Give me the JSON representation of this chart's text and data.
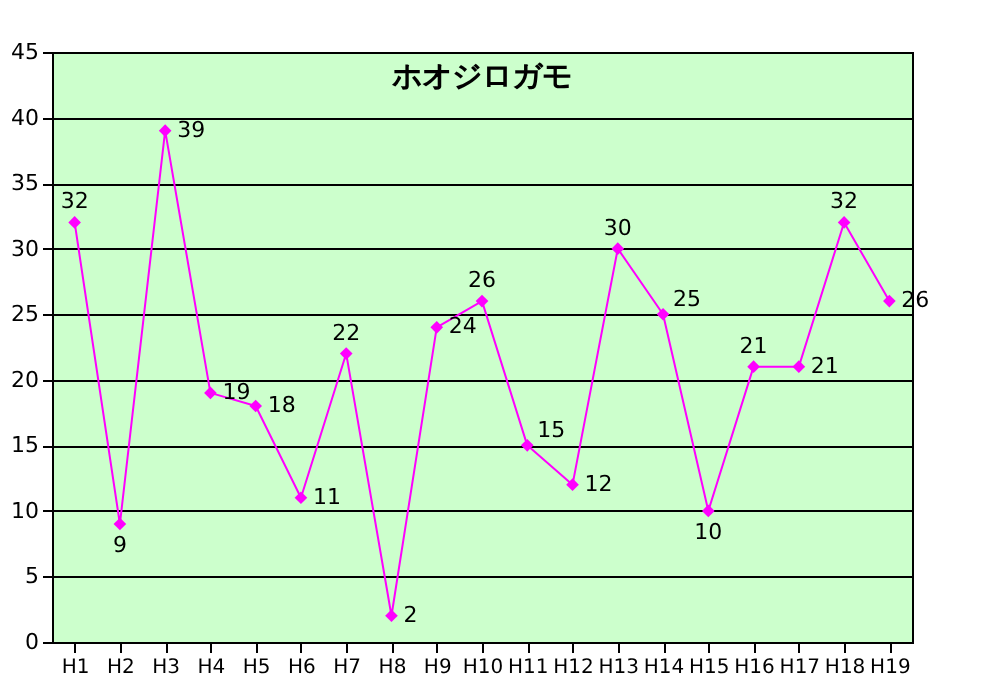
{
  "chart_data": {
    "type": "line",
    "title": "ホオジロガモ",
    "categories": [
      "H1",
      "H2",
      "H3",
      "H4",
      "H5",
      "H6",
      "H7",
      "H8",
      "H9",
      "H10",
      "H11",
      "H12",
      "H13",
      "H14",
      "H15",
      "H16",
      "H17",
      "H18",
      "H19"
    ],
    "series": [
      {
        "color": "#ff00ff",
        "values": [
          32,
          9,
          39,
          19,
          18,
          11,
          22,
          2,
          24,
          26,
          15,
          12,
          30,
          25,
          10,
          21,
          21,
          32,
          26
        ]
      }
    ],
    "ylim": [
      0,
      45
    ],
    "yticks": [
      0,
      5,
      10,
      15,
      20,
      25,
      30,
      35,
      40,
      45
    ],
    "grid": "y",
    "marker": "diamond",
    "line_style": "solid",
    "data_labels": true
  }
}
